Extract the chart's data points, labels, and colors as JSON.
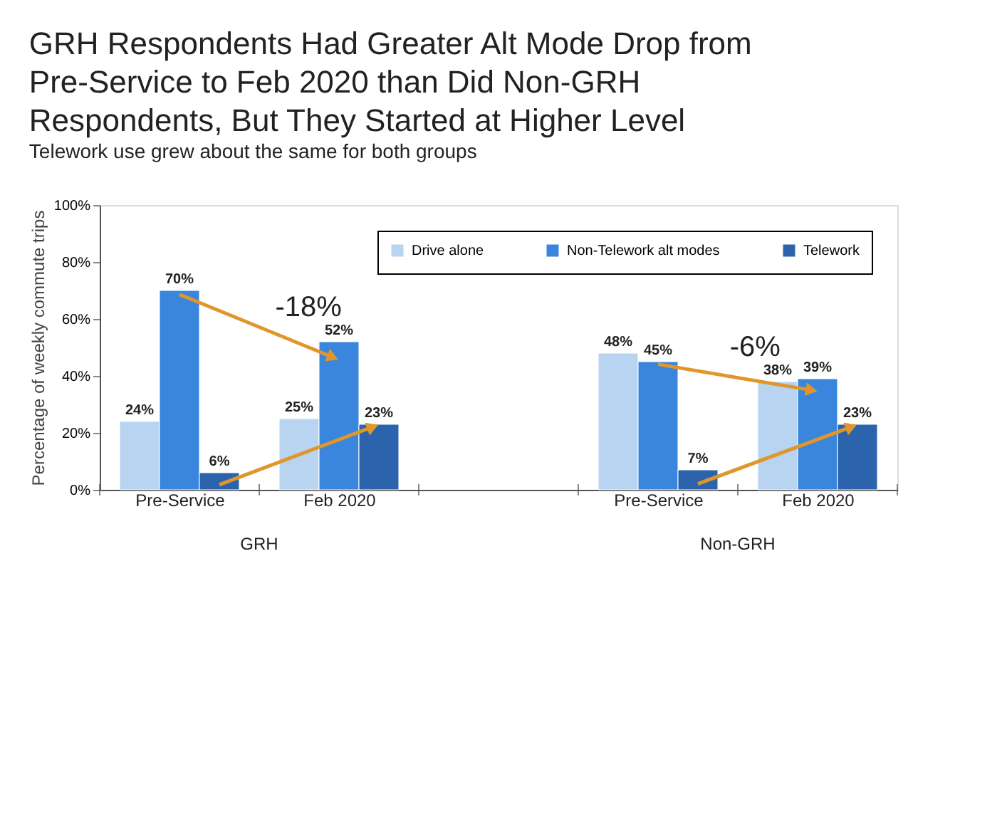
{
  "chart_data": {
    "type": "bar",
    "title": "GRH Respondents Had Greater Alt Mode Drop from Pre-Service to Feb 2020 than Did Non-GRH Respondents, But They Started at Higher Level",
    "subtitle": "Telework use grew about the same for both groups",
    "ylabel": "Percentage of weekly commute trips",
    "categories": [
      "Pre-Service",
      "Feb 2020",
      null,
      "Pre-Service",
      "Feb 2020"
    ],
    "series": [
      {
        "name": "Drive alone",
        "color": "#b8d4f1",
        "values": [
          24,
          25,
          null,
          48,
          38
        ],
        "value_labels": [
          "24%",
          "25%",
          null,
          "48%",
          "38%"
        ]
      },
      {
        "name": "Non-Telework alt modes",
        "color": "#3a86dc",
        "values": [
          70,
          52,
          null,
          45,
          39
        ],
        "value_labels": [
          "70%",
          "52%",
          null,
          "45%",
          "39%"
        ]
      },
      {
        "name": "Telework",
        "color": "#2b64ad",
        "values": [
          6,
          23,
          null,
          7,
          23
        ],
        "value_labels": [
          "6%",
          "23%",
          null,
          "7%",
          "23%"
        ]
      }
    ],
    "ylim": [
      0,
      100
    ],
    "yticks": [
      {
        "value": 0,
        "label": "0%"
      },
      {
        "value": 20,
        "label": "20%"
      },
      {
        "value": 40,
        "label": "40%"
      },
      {
        "value": 60,
        "label": "60%"
      },
      {
        "value": 80,
        "label": "80%"
      },
      {
        "value": 100,
        "label": "100%"
      }
    ],
    "annotations": [
      "-18%",
      "-6%",
      "GRH",
      "Non-GRH"
    ],
    "grid": false,
    "legend": "top right"
  }
}
